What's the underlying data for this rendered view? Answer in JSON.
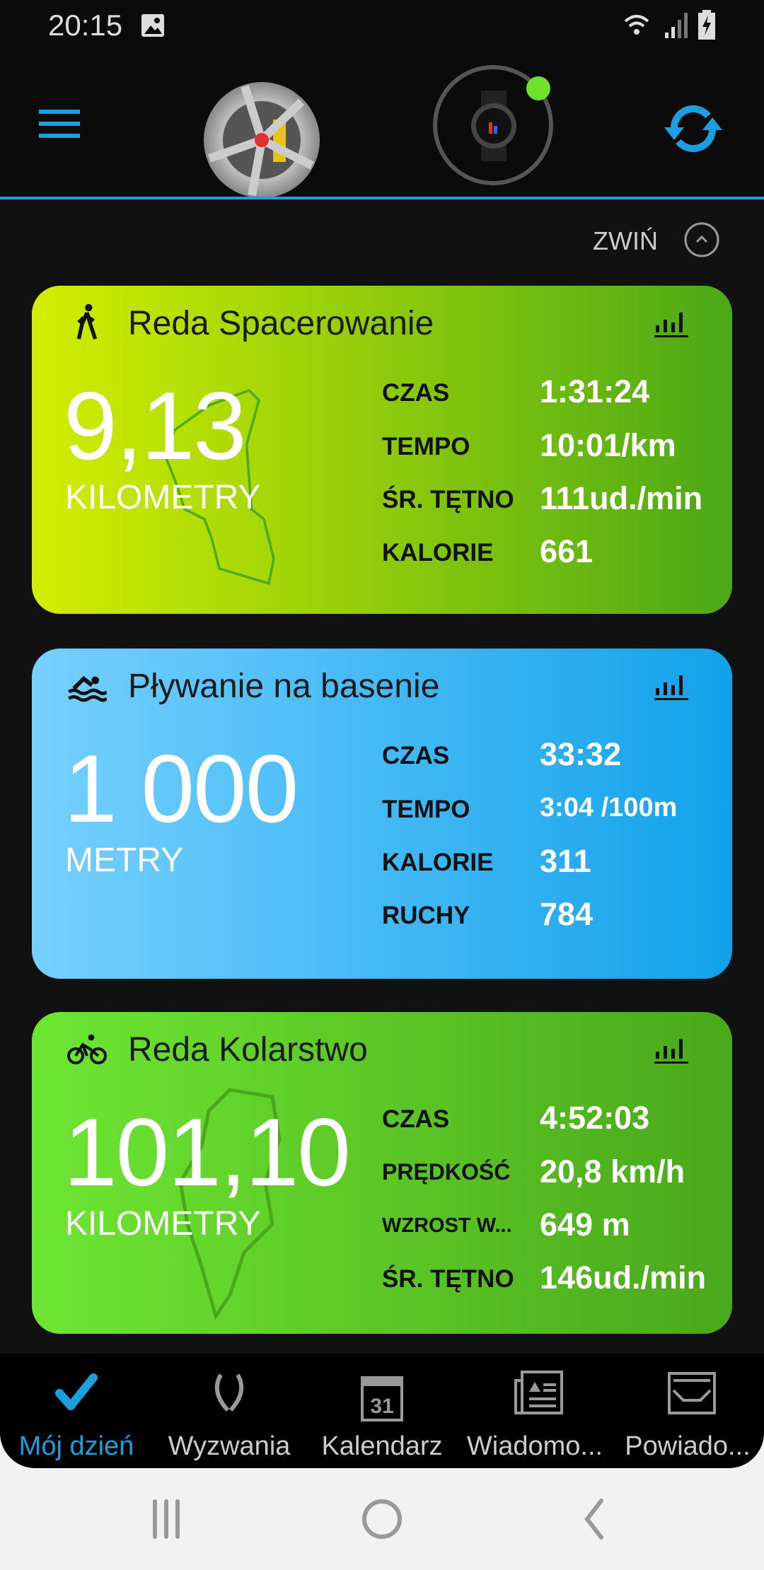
{
  "status_bar": {
    "time": "20:15"
  },
  "header": {
    "collapse_label": "ZWIŃ"
  },
  "colors": {
    "accent": "#1a9fe0",
    "walk_start": "#d3ee00",
    "walk_end": "#4ba816",
    "swim_start": "#76d0ff",
    "swim_end": "#12a2ea",
    "bike_start": "#6de633",
    "bike_end": "#4aa81a",
    "device_connected": "#6ee22b"
  },
  "cards": [
    {
      "icon": "walking-icon",
      "title": "Reda Spacerowanie",
      "value": "9,13",
      "unit": "KILOMETRY",
      "stats": [
        {
          "label": "CZAS",
          "value": "1:31:24"
        },
        {
          "label": "TEMPO",
          "value": "10:01/km"
        },
        {
          "label": "ŚR. TĘTNO",
          "value": "111ud./min"
        },
        {
          "label": "KALORIE",
          "value": "661"
        }
      ]
    },
    {
      "icon": "swimming-icon",
      "title": "Pływanie na basenie",
      "value": "1 000",
      "unit": "METRY",
      "stats": [
        {
          "label": "CZAS",
          "value": "33:32"
        },
        {
          "label": "TEMPO",
          "value": "3:04 /100m"
        },
        {
          "label": "KALORIE",
          "value": "311"
        },
        {
          "label": "RUCHY",
          "value": "784"
        }
      ]
    },
    {
      "icon": "cycling-icon",
      "title": "Reda Kolarstwo",
      "value": "101,10",
      "unit": "KILOMETRY",
      "stats": [
        {
          "label": "CZAS",
          "value": "4:52:03"
        },
        {
          "label": "PRĘDKOŚĆ",
          "value": "20,8 km/h"
        },
        {
          "label": "WZROST W...",
          "value": "649 m"
        },
        {
          "label": "ŚR. TĘTNO",
          "value": "146ud./min"
        }
      ]
    }
  ],
  "bottom_nav": [
    {
      "label": "Mój dzień",
      "icon": "checkmark-icon",
      "active": true
    },
    {
      "label": "Wyzwania",
      "icon": "laurel-icon"
    },
    {
      "label": "Kalendarz",
      "icon": "calendar-icon",
      "day": "31"
    },
    {
      "label": "Wiadomo...",
      "icon": "newspaper-icon"
    },
    {
      "label": "Powiado...",
      "icon": "inbox-icon"
    }
  ]
}
